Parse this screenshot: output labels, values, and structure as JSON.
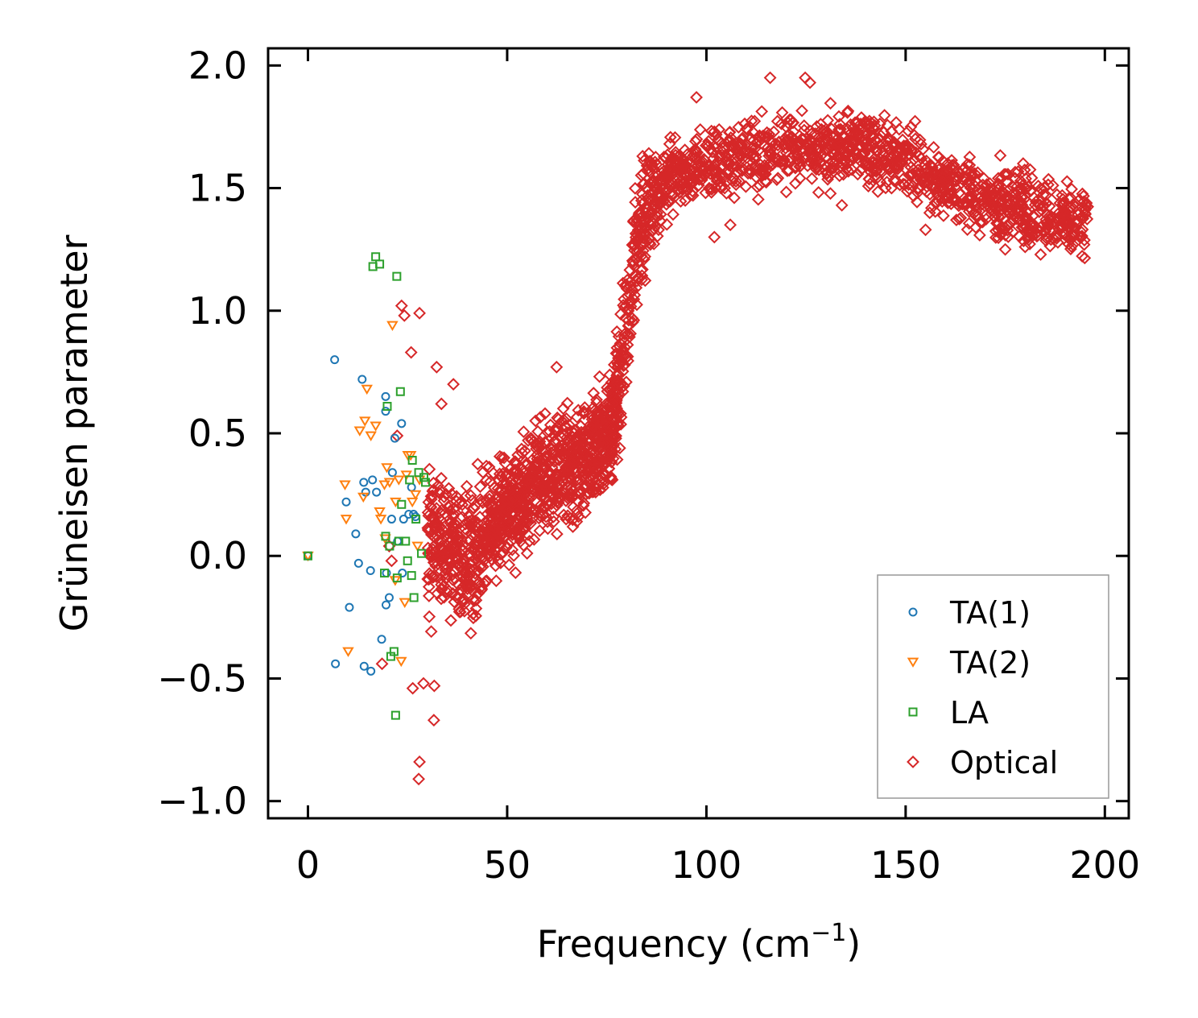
{
  "colors": {
    "ta1": "#1f77b4",
    "ta2": "#ff7f0e",
    "la": "#2ca02c",
    "optical": "#d62728",
    "axis": "#000000",
    "legend_border": "#999999"
  },
  "chart_data": {
    "type": "scatter",
    "xlabel": "Frequency (cm",
    "xlabel_sup": "−1",
    "xlabel_close": ")",
    "ylabel": "Grüneisen parameter",
    "xlim": [
      -10,
      206
    ],
    "ylim": [
      -1.07,
      2.07
    ],
    "xticks": [
      0,
      50,
      100,
      150,
      200
    ],
    "xtick_labels": [
      "0",
      "50",
      "100",
      "150",
      "200"
    ],
    "yticks": [
      -1.0,
      -0.5,
      0.0,
      0.5,
      1.0,
      1.5,
      2.0
    ],
    "ytick_labels": [
      "−1.0",
      "−0.5",
      "0.0",
      "0.5",
      "1.0",
      "1.5",
      "2.0"
    ],
    "legend_position": "lower-right",
    "series": [
      {
        "name": "TA(1)",
        "marker": "circle",
        "points": [
          [
            0,
            0.0
          ],
          [
            6.7,
            0.8
          ],
          [
            9.6,
            0.22
          ],
          [
            10.4,
            -0.21
          ],
          [
            12.0,
            0.09
          ],
          [
            12.7,
            -0.03
          ],
          [
            13.6,
            0.72
          ],
          [
            14.0,
            0.3
          ],
          [
            14.1,
            -0.45
          ],
          [
            14.5,
            0.26
          ],
          [
            15.7,
            -0.06
          ],
          [
            15.8,
            -0.47
          ],
          [
            16.2,
            0.31
          ],
          [
            17.2,
            0.26
          ],
          [
            18.5,
            -0.34
          ],
          [
            19.5,
            0.65
          ],
          [
            19.5,
            0.59
          ],
          [
            19.6,
            -0.2
          ],
          [
            19.7,
            -0.07
          ],
          [
            20.4,
            -0.17
          ],
          [
            21.0,
            0.15
          ],
          [
            21.2,
            0.34
          ],
          [
            21.8,
            0.48
          ],
          [
            22.5,
            0.06
          ],
          [
            23.5,
            0.54
          ],
          [
            23.7,
            -0.07
          ],
          [
            24.0,
            0.15
          ],
          [
            25.3,
            0.17
          ],
          [
            26.0,
            0.28
          ],
          [
            26.5,
            0.17
          ],
          [
            27.0,
            0.16
          ],
          [
            6.9,
            -0.44
          ]
        ]
      },
      {
        "name": "TA(2)",
        "marker": "triangle-down",
        "points": [
          [
            0,
            0.0
          ],
          [
            9.3,
            0.29
          ],
          [
            9.6,
            0.15
          ],
          [
            10.1,
            -0.39
          ],
          [
            13.0,
            0.51
          ],
          [
            13.9,
            0.24
          ],
          [
            14.3,
            0.55
          ],
          [
            14.8,
            0.68
          ],
          [
            15.8,
            0.49
          ],
          [
            17.0,
            0.53
          ],
          [
            18.0,
            0.18
          ],
          [
            18.3,
            0.15
          ],
          [
            19.2,
            0.29
          ],
          [
            19.8,
            0.36
          ],
          [
            20.5,
            0.3
          ],
          [
            21.2,
            0.94
          ],
          [
            22.0,
            0.22
          ],
          [
            22.8,
            0.31
          ],
          [
            23.4,
            -0.43
          ],
          [
            24.3,
            -0.19
          ],
          [
            24.7,
            0.33
          ],
          [
            25.1,
            0.41
          ],
          [
            25.8,
            0.41
          ],
          [
            26.2,
            0.22
          ],
          [
            27.0,
            0.25
          ],
          [
            27.5,
            0.04
          ],
          [
            28.0,
            0.31
          ],
          [
            19.4,
            0.07
          ],
          [
            21.9,
            -0.1
          ]
        ]
      },
      {
        "name": "LA",
        "marker": "square",
        "points": [
          [
            0,
            0.0
          ],
          [
            16.3,
            1.18
          ],
          [
            17.0,
            1.22
          ],
          [
            18.0,
            1.19
          ],
          [
            19.2,
            -0.07
          ],
          [
            19.5,
            0.08
          ],
          [
            19.9,
            0.61
          ],
          [
            20.5,
            0.04
          ],
          [
            20.8,
            -0.41
          ],
          [
            21.6,
            -0.39
          ],
          [
            22.0,
            -0.65
          ],
          [
            22.3,
            1.14
          ],
          [
            22.4,
            -0.09
          ],
          [
            22.8,
            0.06
          ],
          [
            23.2,
            0.67
          ],
          [
            23.5,
            0.21
          ],
          [
            24.5,
            0.06
          ],
          [
            25.0,
            -0.02
          ],
          [
            25.5,
            0.31
          ],
          [
            26.0,
            -0.08
          ],
          [
            26.2,
            0.39
          ],
          [
            26.6,
            -0.17
          ],
          [
            27.1,
            0.15
          ],
          [
            27.8,
            0.34
          ],
          [
            28.5,
            0.01
          ],
          [
            29.1,
            0.32
          ],
          [
            29.5,
            0.3
          ]
        ]
      },
      {
        "name": "Optical",
        "marker": "diamond",
        "generated": true,
        "x_range": [
          22,
          196
        ],
        "trend": [
          [
            22,
            0.3
          ],
          [
            30,
            0.05
          ],
          [
            40,
            0.0
          ],
          [
            50,
            0.2
          ],
          [
            60,
            0.33
          ],
          [
            70,
            0.4
          ],
          [
            76,
            0.5
          ],
          [
            80,
            0.95
          ],
          [
            83,
            1.3
          ],
          [
            86,
            1.45
          ],
          [
            92,
            1.55
          ],
          [
            100,
            1.6
          ],
          [
            110,
            1.63
          ],
          [
            120,
            1.66
          ],
          [
            130,
            1.66
          ],
          [
            140,
            1.67
          ],
          [
            150,
            1.6
          ],
          [
            160,
            1.52
          ],
          [
            170,
            1.45
          ],
          [
            180,
            1.4
          ],
          [
            190,
            1.38
          ],
          [
            196,
            1.35
          ]
        ],
        "outliers": [
          [
            22.4,
            0.49
          ],
          [
            23.5,
            1.02
          ],
          [
            24.2,
            0.98
          ],
          [
            25.9,
            0.83
          ],
          [
            28.0,
            0.99
          ],
          [
            28.0,
            -0.84
          ],
          [
            27.8,
            -0.91
          ],
          [
            31.6,
            -0.67
          ],
          [
            31.7,
            -0.53
          ],
          [
            32.3,
            0.77
          ],
          [
            33.5,
            0.62
          ],
          [
            36.5,
            0.7
          ],
          [
            26.3,
            -0.54
          ],
          [
            29.0,
            -0.52
          ],
          [
            18.6,
            -0.44
          ],
          [
            20.4,
            0.04
          ],
          [
            21.0,
            -0.02
          ],
          [
            62.4,
            0.77
          ],
          [
            63.8,
            0.55
          ],
          [
            116,
            1.95
          ],
          [
            124.8,
            1.95
          ],
          [
            126,
            1.93
          ],
          [
            97.5,
            1.87
          ],
          [
            84,
            1.63
          ],
          [
            179.5,
            1.6
          ],
          [
            102,
            1.3
          ],
          [
            88,
            1.33
          ],
          [
            106,
            1.35
          ],
          [
            134,
            1.43
          ],
          [
            155,
            1.33
          ],
          [
            175,
            1.25
          ],
          [
            180,
            1.26
          ],
          [
            193.7,
            1.3
          ]
        ]
      }
    ]
  }
}
